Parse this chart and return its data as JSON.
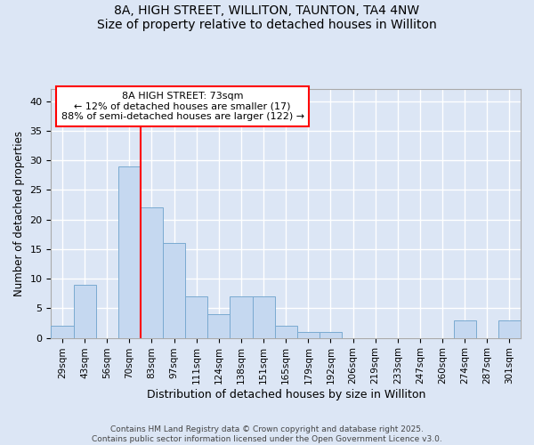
{
  "title_line1": "8A, HIGH STREET, WILLITON, TAUNTON, TA4 4NW",
  "title_line2": "Size of property relative to detached houses in Williton",
  "xlabel": "Distribution of detached houses by size in Williton",
  "ylabel": "Number of detached properties",
  "annotation_line1": "8A HIGH STREET: 73sqm",
  "annotation_line2": "← 12% of detached houses are smaller (17)",
  "annotation_line3": "88% of semi-detached houses are larger (122) →",
  "bar_labels": [
    "29sqm",
    "43sqm",
    "56sqm",
    "70sqm",
    "83sqm",
    "97sqm",
    "111sqm",
    "124sqm",
    "138sqm",
    "151sqm",
    "165sqm",
    "179sqm",
    "192sqm",
    "206sqm",
    "219sqm",
    "233sqm",
    "247sqm",
    "260sqm",
    "274sqm",
    "287sqm",
    "301sqm"
  ],
  "bar_values": [
    2,
    9,
    0,
    29,
    22,
    16,
    7,
    4,
    7,
    7,
    2,
    1,
    1,
    0,
    0,
    0,
    0,
    0,
    3,
    0,
    3
  ],
  "bar_width": 1.0,
  "bar_color": "#c5d8f0",
  "bar_edge_color": "#7aaad0",
  "red_line_x": 3.5,
  "ylim": [
    0,
    42
  ],
  "yticks": [
    0,
    5,
    10,
    15,
    20,
    25,
    30,
    35,
    40
  ],
  "bg_color": "#dce6f5",
  "plot_bg_color": "#dce6f5",
  "grid_color": "#ffffff",
  "footer_line1": "Contains HM Land Registry data © Crown copyright and database right 2025.",
  "footer_line2": "Contains public sector information licensed under the Open Government Licence v3.0."
}
